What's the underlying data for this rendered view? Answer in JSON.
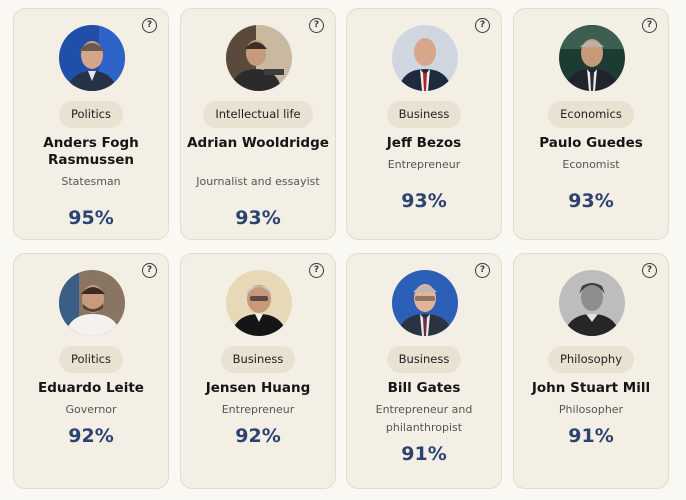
{
  "help_icon_glyph": "?",
  "cards": [
    {
      "category": "Politics",
      "name": "Anders Fogh Rasmussen",
      "role": "Statesman",
      "score": "95%"
    },
    {
      "category": "Intellectual life",
      "name": "Adrian Wooldridge",
      "role": "Journalist and essayist",
      "score": "93%"
    },
    {
      "category": "Business",
      "name": "Jeff Bezos",
      "role": "Entrepreneur",
      "score": "93%"
    },
    {
      "category": "Economics",
      "name": "Paulo Guedes",
      "role": "Economist",
      "score": "93%"
    },
    {
      "category": "Politics",
      "name": "Eduardo Leite",
      "role": "Governor",
      "score": "92%"
    },
    {
      "category": "Business",
      "name": "Jensen Huang",
      "role": "Entrepreneur",
      "score": "92%"
    },
    {
      "category": "Business",
      "name": "Bill Gates",
      "role": "Entrepreneur and philanthropist",
      "score": "91%"
    },
    {
      "category": "Philosophy",
      "name": "John Stuart Mill",
      "role": "Philosopher",
      "score": "91%"
    }
  ],
  "colors": {
    "card_bg": "#f3efe5",
    "badge_bg": "#e8e2d2",
    "score": "#2c4372"
  },
  "avatar_icon": "portrait-photo"
}
